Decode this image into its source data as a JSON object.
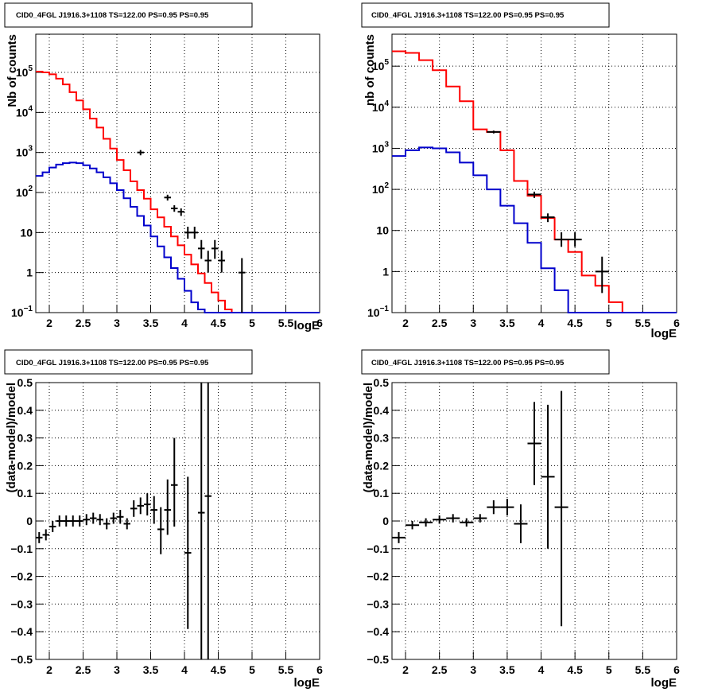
{
  "chart_data": [
    {
      "type": "line",
      "title": "CID0_4FGL J1916.3+1108 TS=122.00 PS=0.95 PS=0.95",
      "xlabel": "logE",
      "ylabel": "Nb of counts",
      "xlim": [
        1.8,
        6
      ],
      "ylim": [
        0.1,
        900000
      ],
      "yscale": "log",
      "grid": true,
      "x_ticks": [
        "2",
        "2.5",
        "3",
        "3.5",
        "4",
        "4.5",
        "5",
        "5.5",
        "6"
      ],
      "y_ticks": [
        {
          "base": "10",
          "exp": "−1",
          "value": 0.1
        },
        {
          "base": "1",
          "exp": "",
          "value": 1
        },
        {
          "base": "10",
          "exp": "",
          "value": 10
        },
        {
          "base": "10",
          "exp": "2",
          "value": 100
        },
        {
          "base": "10",
          "exp": "3",
          "value": 1000
        },
        {
          "base": "10",
          "exp": "4",
          "value": 10000
        },
        {
          "base": "10",
          "exp": "5",
          "value": 100000
        }
      ],
      "step_width": 0.1,
      "series": [
        {
          "color": "#ff0000",
          "x": [
            1.8,
            1.9,
            2.0,
            2.1,
            2.2,
            2.3,
            2.4,
            2.5,
            2.6,
            2.7,
            2.8,
            2.9,
            3.0,
            3.1,
            3.2,
            3.3,
            3.4,
            3.5,
            3.6,
            3.7,
            3.8,
            3.9,
            4.0,
            4.1,
            4.2,
            4.3,
            4.4,
            4.5,
            4.6,
            4.7,
            4.8,
            4.9,
            5.0,
            5.1,
            5.2,
            5.3,
            5.4,
            5.5,
            5.6,
            5.7,
            5.8,
            5.9
          ],
          "values": [
            105000,
            100000,
            90000,
            70000,
            50000,
            32000,
            20000,
            12000,
            7000,
            4200,
            2200,
            1250,
            650,
            360,
            190,
            115,
            70,
            38,
            24,
            14,
            8,
            4.8,
            2.8,
            1.6,
            0.95,
            0.55,
            0.32,
            0.2,
            0.12,
            0.09,
            0.09,
            0.09,
            0.09,
            0.09,
            0.09,
            0.09,
            0.09,
            0.09,
            0.09,
            0.09,
            0.09,
            0.09
          ]
        },
        {
          "color": "#0000cc",
          "x": [
            1.8,
            1.9,
            2.0,
            2.1,
            2.2,
            2.3,
            2.4,
            2.5,
            2.6,
            2.7,
            2.8,
            2.9,
            3.0,
            3.1,
            3.2,
            3.3,
            3.4,
            3.5,
            3.6,
            3.7,
            3.8,
            3.9,
            4.0,
            4.1,
            4.2,
            4.3,
            4.4,
            4.5,
            4.6,
            4.7,
            4.8,
            4.9,
            5.0,
            5.1,
            5.2,
            5.3,
            5.4,
            5.5,
            5.6,
            5.7,
            5.8,
            5.9
          ],
          "values": [
            260,
            320,
            420,
            500,
            540,
            560,
            540,
            480,
            400,
            320,
            240,
            170,
            115,
            72,
            44,
            26,
            15,
            8,
            4.5,
            2.4,
            1.3,
            0.7,
            0.35,
            0.18,
            0.12,
            0.09,
            0.09,
            0.09,
            0.09,
            0.09,
            0.09,
            0.09,
            0.09,
            0.09,
            0.09,
            0.09,
            0.09,
            0.09,
            0.09,
            0.09,
            0.09,
            0.09
          ]
        }
      ],
      "points": [
        {
          "x": 3.35,
          "y": 1000,
          "xerr": 0.05,
          "ylo": 850,
          "yhi": 1150
        },
        {
          "x": 3.75,
          "y": 75,
          "xerr": 0.05,
          "ylo": 63,
          "yhi": 88
        },
        {
          "x": 3.85,
          "y": 40,
          "xerr": 0.05,
          "ylo": 33,
          "yhi": 48
        },
        {
          "x": 3.95,
          "y": 33,
          "xerr": 0.05,
          "ylo": 26,
          "yhi": 40
        },
        {
          "x": 4.05,
          "y": 10,
          "xerr": 0.05,
          "ylo": 7,
          "yhi": 14
        },
        {
          "x": 4.15,
          "y": 10,
          "xerr": 0.05,
          "ylo": 7,
          "yhi": 14
        },
        {
          "x": 4.25,
          "y": 4,
          "xerr": 0.05,
          "ylo": 2.2,
          "yhi": 6.5
        },
        {
          "x": 4.35,
          "y": 2,
          "xerr": 0.05,
          "ylo": 1,
          "yhi": 3.5
        },
        {
          "x": 4.45,
          "y": 4,
          "xerr": 0.05,
          "ylo": 2.2,
          "yhi": 6.5
        },
        {
          "x": 4.55,
          "y": 2,
          "xerr": 0.05,
          "ylo": 1,
          "yhi": 3.5
        },
        {
          "x": 4.85,
          "y": 1,
          "xerr": 0.05,
          "ylo": 0.1,
          "yhi": 2.3
        }
      ]
    },
    {
      "type": "line",
      "title": "CID0_4FGL J1916.3+1108 TS=122.00 PS=0.95 PS=0.95",
      "xlabel": "logE",
      "ylabel": "nb of counts",
      "xlim": [
        1.8,
        6
      ],
      "ylim": [
        0.1,
        600000
      ],
      "yscale": "log",
      "grid": true,
      "x_ticks": [
        "2",
        "2.5",
        "3",
        "3.5",
        "4",
        "4.5",
        "5",
        "5.5",
        "6"
      ],
      "y_ticks": [
        {
          "base": "10",
          "exp": "−1",
          "value": 0.1
        },
        {
          "base": "1",
          "exp": "",
          "value": 1
        },
        {
          "base": "10",
          "exp": "",
          "value": 10
        },
        {
          "base": "10",
          "exp": "2",
          "value": 100
        },
        {
          "base": "10",
          "exp": "3",
          "value": 1000
        },
        {
          "base": "10",
          "exp": "4",
          "value": 10000
        },
        {
          "base": "10",
          "exp": "5",
          "value": 100000
        }
      ],
      "step_width": 0.2,
      "series": [
        {
          "color": "#ff0000",
          "x": [
            1.8,
            2.0,
            2.2,
            2.4,
            2.6,
            2.8,
            3.0,
            3.2,
            3.4,
            3.6,
            3.8,
            4.0,
            4.2,
            4.4,
            4.6,
            4.8,
            5.0,
            5.2,
            5.4,
            5.6,
            5.8
          ],
          "values": [
            230000,
            210000,
            140000,
            80000,
            32000,
            14000,
            2900,
            2500,
            900,
            160,
            70,
            20,
            6,
            3,
            0.8,
            0.45,
            0.18,
            0.09,
            0.09,
            0.09,
            0.09
          ]
        },
        {
          "color": "#0000cc",
          "x": [
            1.8,
            2.0,
            2.2,
            2.4,
            2.6,
            2.8,
            3.0,
            3.2,
            3.4,
            3.6,
            3.8,
            4.0,
            4.2,
            4.4,
            4.6,
            4.8,
            5.0,
            5.2,
            5.4,
            5.6,
            5.8
          ],
          "values": [
            650,
            900,
            1050,
            1000,
            800,
            450,
            220,
            100,
            40,
            15,
            5,
            1.2,
            0.35,
            0.09,
            0.09,
            0.09,
            0.09,
            0.09,
            0.09,
            0.09,
            0.09
          ]
        }
      ],
      "points": [
        {
          "x": 3.3,
          "y": 2500,
          "xerr": 0.1,
          "ylo": 2300,
          "yhi": 2700
        },
        {
          "x": 3.9,
          "y": 75,
          "xerr": 0.1,
          "ylo": 62,
          "yhi": 88
        },
        {
          "x": 4.1,
          "y": 21,
          "xerr": 0.1,
          "ylo": 16,
          "yhi": 26
        },
        {
          "x": 4.3,
          "y": 6,
          "xerr": 0.1,
          "ylo": 4,
          "yhi": 9
        },
        {
          "x": 4.5,
          "y": 6,
          "xerr": 0.1,
          "ylo": 4,
          "yhi": 9
        },
        {
          "x": 4.9,
          "y": 1,
          "xerr": 0.1,
          "ylo": 0.3,
          "yhi": 2.3
        }
      ]
    },
    {
      "type": "scatter",
      "title": "CID0_4FGL J1916.3+1108 TS=122.00 PS=0.95 PS=0.95",
      "xlabel": "logE",
      "ylabel": "(data-model)/model",
      "xlim": [
        1.8,
        6
      ],
      "ylim": [
        -0.5,
        0.5
      ],
      "grid": true,
      "x_ticks": [
        "2",
        "2.5",
        "3",
        "3.5",
        "4",
        "4.5",
        "5",
        "5.5",
        "6"
      ],
      "y_ticks": [
        "−0.5",
        "−0.4",
        "−0.3",
        "−0.2",
        "−0.1",
        "0",
        "0.1",
        "0.2",
        "0.3",
        "0.4",
        "0.5"
      ],
      "points": [
        {
          "x": 1.85,
          "y": -0.06,
          "xerr": 0.05,
          "ylo": -0.08,
          "yhi": -0.04
        },
        {
          "x": 1.95,
          "y": -0.05,
          "xerr": 0.05,
          "ylo": -0.07,
          "yhi": -0.03
        },
        {
          "x": 2.05,
          "y": -0.02,
          "xerr": 0.05,
          "ylo": -0.04,
          "yhi": 0.0
        },
        {
          "x": 2.15,
          "y": 0.0,
          "xerr": 0.05,
          "ylo": -0.02,
          "yhi": 0.02
        },
        {
          "x": 2.25,
          "y": 0.0,
          "xerr": 0.05,
          "ylo": -0.02,
          "yhi": 0.02
        },
        {
          "x": 2.35,
          "y": 0.0,
          "xerr": 0.05,
          "ylo": -0.02,
          "yhi": 0.02
        },
        {
          "x": 2.45,
          "y": 0.0,
          "xerr": 0.05,
          "ylo": -0.02,
          "yhi": 0.02
        },
        {
          "x": 2.55,
          "y": 0.005,
          "xerr": 0.05,
          "ylo": -0.015,
          "yhi": 0.025
        },
        {
          "x": 2.65,
          "y": 0.01,
          "xerr": 0.05,
          "ylo": -0.01,
          "yhi": 0.03
        },
        {
          "x": 2.75,
          "y": 0.005,
          "xerr": 0.05,
          "ylo": -0.015,
          "yhi": 0.025
        },
        {
          "x": 2.85,
          "y": -0.01,
          "xerr": 0.05,
          "ylo": -0.03,
          "yhi": 0.01
        },
        {
          "x": 2.95,
          "y": 0.01,
          "xerr": 0.05,
          "ylo": -0.01,
          "yhi": 0.03
        },
        {
          "x": 3.05,
          "y": 0.015,
          "xerr": 0.05,
          "ylo": -0.01,
          "yhi": 0.04
        },
        {
          "x": 3.15,
          "y": -0.01,
          "xerr": 0.05,
          "ylo": -0.03,
          "yhi": 0.01
        },
        {
          "x": 3.25,
          "y": 0.045,
          "xerr": 0.05,
          "ylo": 0.015,
          "yhi": 0.075
        },
        {
          "x": 3.35,
          "y": 0.055,
          "xerr": 0.05,
          "ylo": 0.025,
          "yhi": 0.085
        },
        {
          "x": 3.45,
          "y": 0.06,
          "xerr": 0.05,
          "ylo": 0.02,
          "yhi": 0.1
        },
        {
          "x": 3.55,
          "y": 0.04,
          "xerr": 0.05,
          "ylo": -0.01,
          "yhi": 0.09
        },
        {
          "x": 3.65,
          "y": -0.03,
          "xerr": 0.05,
          "ylo": -0.12,
          "yhi": 0.05
        },
        {
          "x": 3.75,
          "y": 0.04,
          "xerr": 0.05,
          "ylo": -0.05,
          "yhi": 0.15
        },
        {
          "x": 3.85,
          "y": 0.13,
          "xerr": 0.05,
          "ylo": -0.02,
          "yhi": 0.3
        },
        {
          "x": 4.05,
          "y": -0.115,
          "xerr": 0.05,
          "ylo": -0.39,
          "yhi": 0.16
        },
        {
          "x": 4.25,
          "y": 0.03,
          "xerr": 0.05,
          "ylo": -0.5,
          "yhi": 0.5
        },
        {
          "x": 4.35,
          "y": 0.09,
          "xerr": 0.05,
          "ylo": -0.5,
          "yhi": 0.5
        }
      ]
    },
    {
      "type": "scatter",
      "title": "CID0_4FGL J1916.3+1108 TS=122.00 PS=0.95 PS=0.95",
      "xlabel": "logE",
      "ylabel": "(data-model)/model",
      "xlim": [
        1.8,
        6
      ],
      "ylim": [
        -0.5,
        0.5
      ],
      "grid": true,
      "x_ticks": [
        "2",
        "2.5",
        "3",
        "3.5",
        "4",
        "4.5",
        "5",
        "5.5",
        "6"
      ],
      "y_ticks": [
        "−0.5",
        "−0.4",
        "−0.3",
        "−0.2",
        "−0.1",
        "0",
        "0.1",
        "0.2",
        "0.3",
        "0.4",
        "0.5"
      ],
      "points": [
        {
          "x": 1.9,
          "y": -0.06,
          "xerr": 0.1,
          "ylo": -0.08,
          "yhi": -0.04
        },
        {
          "x": 2.1,
          "y": -0.015,
          "xerr": 0.1,
          "ylo": -0.03,
          "yhi": 0.0
        },
        {
          "x": 2.3,
          "y": -0.005,
          "xerr": 0.1,
          "ylo": -0.02,
          "yhi": 0.01
        },
        {
          "x": 2.5,
          "y": 0.005,
          "xerr": 0.1,
          "ylo": -0.01,
          "yhi": 0.02
        },
        {
          "x": 2.7,
          "y": 0.01,
          "xerr": 0.1,
          "ylo": -0.005,
          "yhi": 0.025
        },
        {
          "x": 2.9,
          "y": -0.005,
          "xerr": 0.1,
          "ylo": -0.02,
          "yhi": 0.01
        },
        {
          "x": 3.1,
          "y": 0.01,
          "xerr": 0.1,
          "ylo": -0.005,
          "yhi": 0.025
        },
        {
          "x": 3.3,
          "y": 0.05,
          "xerr": 0.1,
          "ylo": 0.025,
          "yhi": 0.075
        },
        {
          "x": 3.5,
          "y": 0.05,
          "xerr": 0.1,
          "ylo": 0.02,
          "yhi": 0.08
        },
        {
          "x": 3.7,
          "y": -0.01,
          "xerr": 0.1,
          "ylo": -0.08,
          "yhi": 0.06
        },
        {
          "x": 3.9,
          "y": 0.28,
          "xerr": 0.1,
          "ylo": 0.13,
          "yhi": 0.43
        },
        {
          "x": 4.1,
          "y": 0.16,
          "xerr": 0.1,
          "ylo": -0.1,
          "yhi": 0.42
        },
        {
          "x": 4.3,
          "y": 0.05,
          "xerr": 0.1,
          "ylo": -0.38,
          "yhi": 0.47
        }
      ]
    }
  ]
}
